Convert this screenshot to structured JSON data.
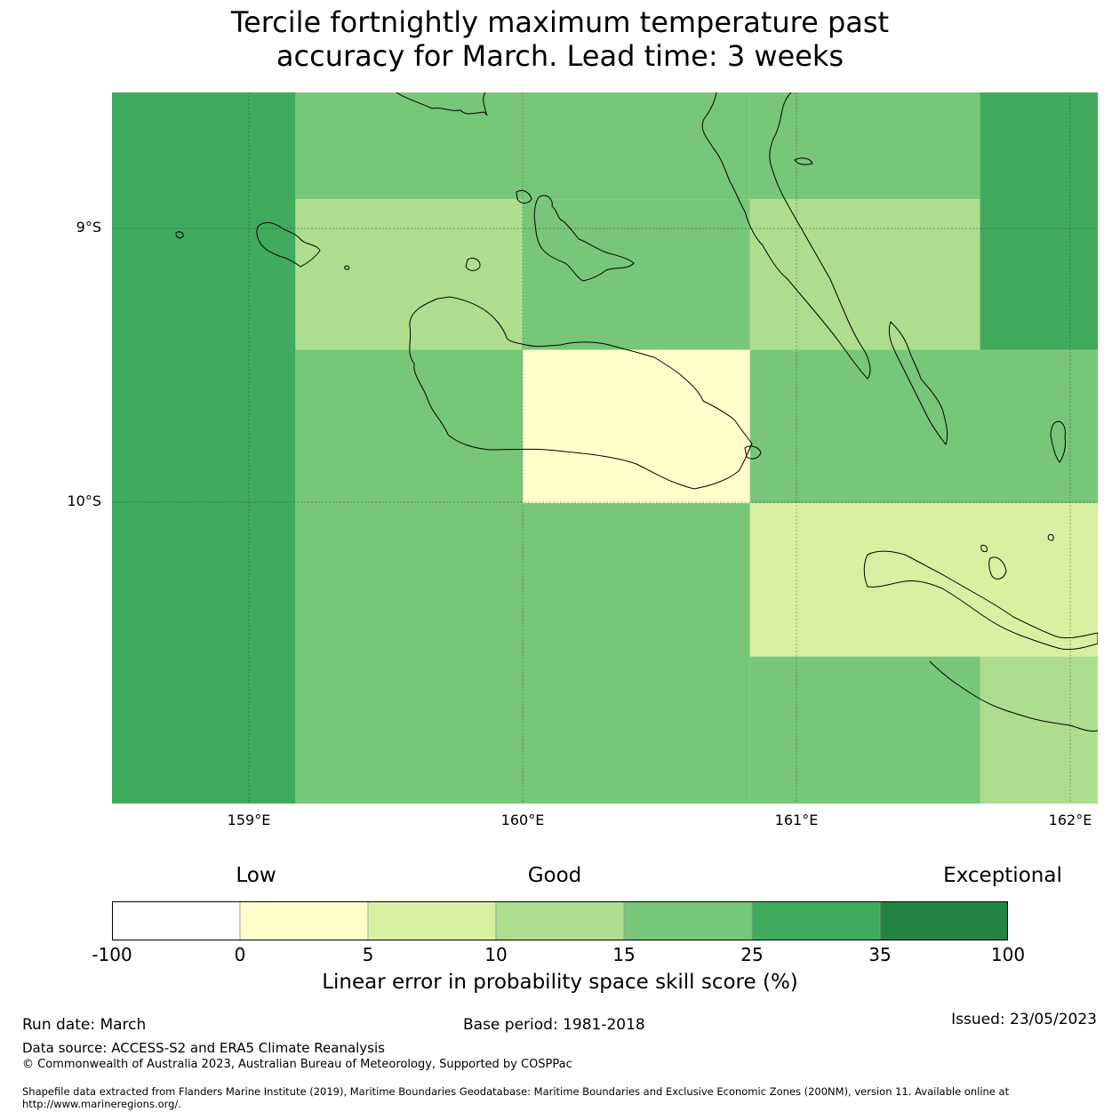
{
  "title": {
    "line1": "Tercile fortnightly maximum temperature past",
    "line2": "accuracy for March. Lead time: 3 weeks"
  },
  "map": {
    "lat_labels": [
      "9°S",
      "10°S"
    ],
    "lon_labels": [
      "159°E",
      "160°E",
      "161°E",
      "162°E"
    ],
    "coastline_color": "#000000",
    "gridline_color": "#2a2a2a"
  },
  "grid_cells": [
    {
      "lon": [
        158.5,
        159.17
      ],
      "lat": [
        -8.5,
        -11.0
      ],
      "score": 30
    },
    {
      "lon": [
        159.17,
        160.0
      ],
      "lat": [
        -8.5,
        -8.89
      ],
      "score": 20
    },
    {
      "lon": [
        160.0,
        160.83
      ],
      "lat": [
        -8.5,
        -8.89
      ],
      "score": 20
    },
    {
      "lon": [
        160.83,
        161.67
      ],
      "lat": [
        -8.5,
        -8.89
      ],
      "score": 20
    },
    {
      "lon": [
        161.67,
        162.1
      ],
      "lat": [
        -8.5,
        -9.44
      ],
      "score": 30
    },
    {
      "lon": [
        159.17,
        160.0
      ],
      "lat": [
        -8.89,
        -9.44
      ],
      "score": 12
    },
    {
      "lon": [
        160.0,
        160.83
      ],
      "lat": [
        -8.89,
        -9.44
      ],
      "score": 20
    },
    {
      "lon": [
        160.83,
        161.67
      ],
      "lat": [
        -8.89,
        -9.44
      ],
      "score": 12
    },
    {
      "lon": [
        159.17,
        160.0
      ],
      "lat": [
        -9.44,
        -10.0
      ],
      "score": 20
    },
    {
      "lon": [
        160.0,
        160.83
      ],
      "lat": [
        -9.44,
        -10.0
      ],
      "score": 3
    },
    {
      "lon": [
        160.83,
        162.1
      ],
      "lat": [
        -9.44,
        -10.0
      ],
      "score": 20
    },
    {
      "lon": [
        159.17,
        160.83
      ],
      "lat": [
        -10.0,
        -11.0
      ],
      "score": 20
    },
    {
      "lon": [
        160.83,
        162.1
      ],
      "lat": [
        -10.0,
        -10.56
      ],
      "score": 7
    },
    {
      "lon": [
        160.83,
        161.67
      ],
      "lat": [
        -10.56,
        -11.0
      ],
      "score": 20
    },
    {
      "lon": [
        161.67,
        162.1
      ],
      "lat": [
        -10.56,
        -11.0
      ],
      "score": 12
    }
  ],
  "colorbar": {
    "category_labels": [
      "Low",
      "Good",
      "Exceptional"
    ],
    "bins": [
      {
        "from": -100,
        "to": 0,
        "color": "#ffffff"
      },
      {
        "from": 0,
        "to": 5,
        "color": "#ffffcc"
      },
      {
        "from": 5,
        "to": 10,
        "color": "#d9f0a3"
      },
      {
        "from": 10,
        "to": 15,
        "color": "#addd8e"
      },
      {
        "from": 15,
        "to": 25,
        "color": "#78c679"
      },
      {
        "from": 25,
        "to": 35,
        "color": "#41ab5d"
      },
      {
        "from": 35,
        "to": 100,
        "color": "#238443"
      }
    ],
    "tick_labels": [
      "-100",
      "0",
      "5",
      "10",
      "15",
      "25",
      "35",
      "100"
    ],
    "label": "Linear error in probability space skill score (%)"
  },
  "footer": {
    "run_date": "Run date: March",
    "base_period": "Base period: 1981-2018",
    "issued": "Issued: 23/05/2023",
    "data_source": "Data source: ACCESS-S2 and ERA5 Climate Reanalysis",
    "copyright": "© Commonwealth of Australia 2023, Australian Bureau of Meteorology, Supported by COSPPac",
    "shapefile": "Shapefile data extracted from Flanders Marine Institute (2019), Maritime Boundaries Geodatabase: Maritime Boundaries and Exclusive Economic Zones (200NM), version 11. Available online at http://www.marineregions.org/."
  }
}
